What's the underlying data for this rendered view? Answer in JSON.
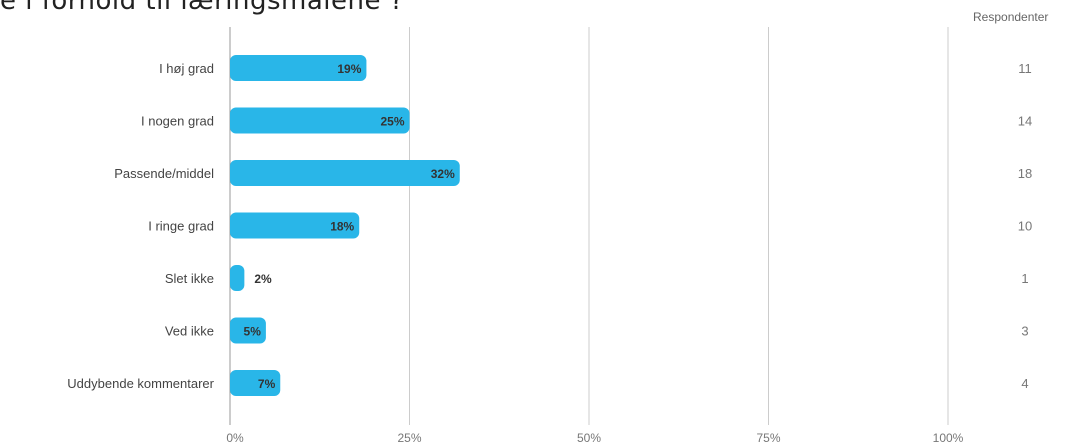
{
  "chart_data": {
    "type": "bar",
    "orientation": "horizontal",
    "title": "e i forhold til læringsmålene ?",
    "categories": [
      "I høj grad",
      "I nogen grad",
      "Passende/middel",
      "I ringe grad",
      "Slet ikke",
      "Ved ikke",
      "Uddybende kommentarer"
    ],
    "values": [
      19,
      25,
      32,
      18,
      2,
      5,
      7
    ],
    "value_labels": [
      "19%",
      "25%",
      "32%",
      "18%",
      "2%",
      "5%",
      "7%"
    ],
    "respondents_header": "Respondenter",
    "respondents": [
      "11",
      "14",
      "18",
      "10",
      "1",
      "3",
      "4"
    ],
    "x_ticks": [
      0,
      25,
      50,
      75,
      100
    ],
    "x_tick_labels": [
      "0%",
      "25%",
      "50%",
      "75%",
      "100%"
    ],
    "xlim": [
      0,
      100
    ],
    "grid": true,
    "bar_color": "#29b6e8",
    "grid_color": "#cccccc"
  }
}
